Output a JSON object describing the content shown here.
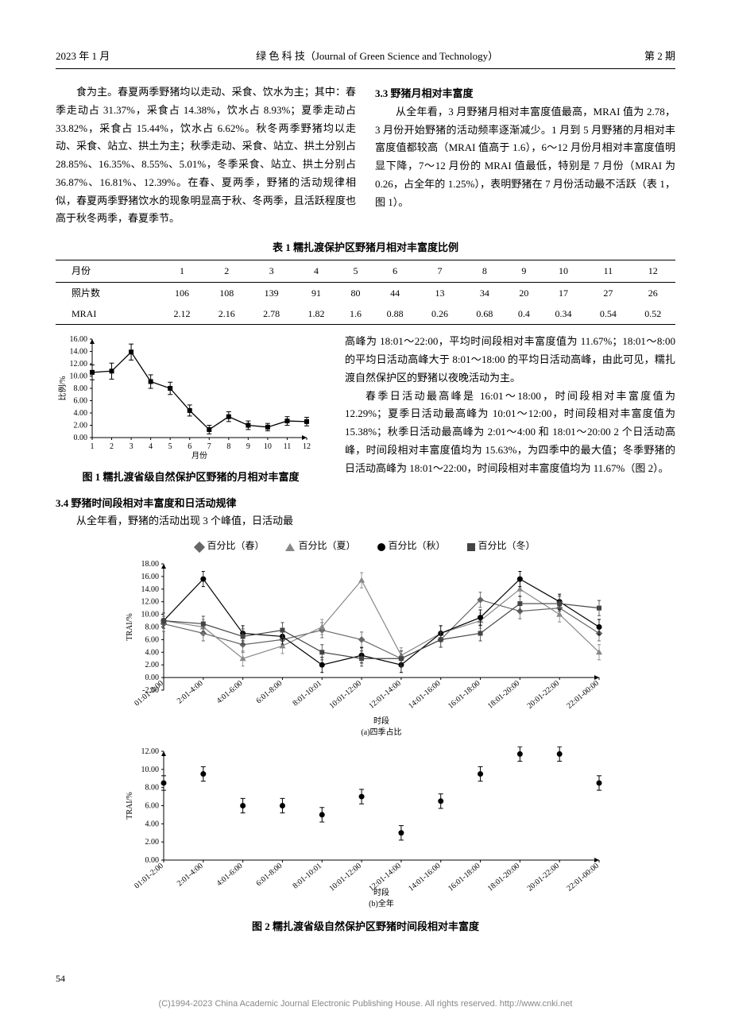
{
  "header": {
    "left": "2023 年 1 月",
    "center": "绿 色 科 技（Journal of Green Science and Technology）",
    "right": "第 2 期"
  },
  "col_left": {
    "p1": "食为主。春夏两季野猪均以走动、采食、饮水为主；其中：春季走动占 31.37%，采食占 14.38%，饮水占 8.93%；夏季走动占 33.82%，采食占 15.44%，饮水占 6.62%。秋冬两季野猪均以走动、采食、站立、拱土为主；秋季走动、采食、站立、拱土分别占 28.85%、16.35%、8.55%、5.01%，冬季采食、站立、拱土分别占 36.87%、16.81%、12.39%。在春、夏两季，野猪的活动规律相似，春夏两季野猪饮水的现象明显高于秋、冬两季，且活跃程度也高于秋冬两季，春夏季节。"
  },
  "col_right": {
    "sec": "3.3  野猪月相对丰富度",
    "p1": "从全年看，3 月野猪月相对丰富度值最高，MRAI 值为 2.78，3 月份开始野猪的活动频率逐渐减少。1 月到 5 月野猪的月相对丰富度值都较高（MRAI 值高于 1.6），6～12 月份月相对丰富度值明显下降，7～12 月份的 MRAI 值最低，特别是 7 月份（MRAI 为 0.26，占全年的 1.25%），表明野猪在 7 月份活动最不活跃（表 1，图 1）。"
  },
  "table1": {
    "caption": "表 1  糯扎渡保护区野猪月相对丰富度比例",
    "rows": [
      [
        "月份",
        "1",
        "2",
        "3",
        "4",
        "5",
        "6",
        "7",
        "8",
        "9",
        "10",
        "11",
        "12"
      ],
      [
        "照片数",
        "106",
        "108",
        "139",
        "91",
        "80",
        "44",
        "13",
        "34",
        "20",
        "17",
        "27",
        "26"
      ],
      [
        "MRAI",
        "2.12",
        "2.16",
        "2.78",
        "1.82",
        "1.6",
        "0.88",
        "0.26",
        "0.68",
        "0.4",
        "0.34",
        "0.54",
        "0.52"
      ]
    ]
  },
  "fig1": {
    "caption": "图 1  糯扎渡省级自然保护区野猪的月相对丰富度",
    "type": "line-errorbar",
    "xlabel": "月份",
    "ylabel": "比例/%",
    "ylim": [
      0,
      16
    ],
    "ytick_step": 2,
    "x": [
      1,
      2,
      3,
      4,
      5,
      6,
      7,
      8,
      9,
      10,
      11,
      12
    ],
    "y": [
      10.6,
      10.8,
      13.9,
      9.1,
      8.0,
      4.4,
      1.3,
      3.4,
      2.0,
      1.7,
      2.7,
      2.6
    ],
    "err": [
      1.2,
      1.3,
      1.3,
      1.1,
      1.0,
      0.9,
      0.7,
      0.8,
      0.7,
      0.6,
      0.7,
      0.7
    ],
    "line_color": "#000000",
    "marker": "square-filled",
    "background": "#ffffff"
  },
  "sec34": {
    "title": "3.4  野猪时间段相对丰富度和日活动规律",
    "left_p": "从全年看，野猪的活动出现 3 个峰值，日活动最",
    "right_p1": "高峰为 18:01～22:00，平均时间段相对丰富度值为 11.67%；18:01～8:00 的平均日活动高峰大于 8:01～18:00 的平均日活动高峰，由此可见，糯扎渡自然保护区的野猪以夜晚活动为主。",
    "right_p2": "春季日活动最高峰是 16:01～18:00，时间段相对丰富度值为 12.29%；夏季日活动最高峰为 10:01～12:00，时间段相对丰富度值为 15.38%；秋季日活动最高峰为 2:01～4:00 和 18:01～20:00 2 个日活动高峰，时间段相对丰富度值均为 15.63%，为四季中的最大值；冬季野猪的日活动高峰为 18:01～22:00，时间段相对丰富度值均为 11.67%（图 2）。"
  },
  "fig2": {
    "caption": "图 2  糯扎渡省级自然保护区野猪时间段相对丰富度",
    "legend": [
      "百分比（春）",
      "百分比（夏）",
      "百分比（秋）",
      "百分比（冬）"
    ],
    "legend_markers": [
      "diamond",
      "triangle",
      "circle",
      "square"
    ],
    "time_slots": [
      "01:01-2:00",
      "2:01-4:00",
      "4:01-6:00",
      "6:01-8:00",
      "8:01-10:01",
      "10:01-12:00",
      "12:01-14:00",
      "14:01-16:00",
      "16:01-18:00",
      "18:01-20:00",
      "20:01-22:00",
      "22:01-00:00"
    ],
    "panel_a": {
      "subtitle": "(a)四季占比",
      "xlabel": "时段",
      "ylabel": "TRAI/%",
      "ylim": [
        -2,
        18
      ],
      "ytick_step": 2,
      "series": {
        "spring": [
          8.5,
          7.0,
          5.2,
          6.0,
          7.5,
          6.0,
          3.0,
          6.0,
          12.3,
          10.5,
          11.0,
          7.0
        ],
        "summer": [
          9.0,
          8.0,
          3.0,
          5.0,
          8.0,
          15.4,
          3.5,
          7.0,
          9.0,
          14.0,
          10.0,
          4.0
        ],
        "autumn": [
          9.0,
          15.6,
          7.0,
          6.5,
          2.0,
          3.5,
          2.0,
          7.0,
          9.5,
          15.6,
          12.0,
          8.0
        ],
        "winter": [
          9.0,
          8.5,
          6.5,
          7.5,
          4.0,
          3.0,
          3.0,
          6.0,
          7.0,
          11.7,
          11.7,
          11.0
        ]
      },
      "err": 1.2,
      "colors": {
        "spring": "#666666",
        "summer": "#888888",
        "autumn": "#000000",
        "winter": "#444444"
      }
    },
    "panel_b": {
      "subtitle": "(b)全年",
      "xlabel": "时段",
      "ylabel": "TRAI/%",
      "ylim": [
        0,
        12
      ],
      "ytick_step": 2,
      "y": [
        8.5,
        9.5,
        6.0,
        6.0,
        5.0,
        7.0,
        3.0,
        6.5,
        9.5,
        11.7,
        11.7,
        8.5
      ],
      "err": 0.8,
      "color": "#000000",
      "marker": "circle-filled"
    }
  },
  "page_number": "54",
  "footer": "(C)1994-2023 China Academic Journal Electronic Publishing House. All rights reserved.    http://www.cnki.net"
}
